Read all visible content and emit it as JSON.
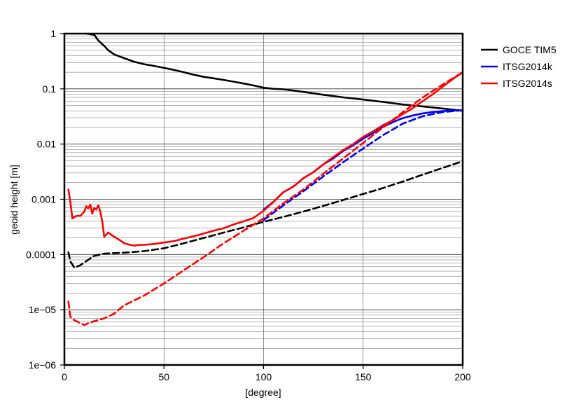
{
  "chart_data": {
    "type": "line",
    "title": "",
    "xlabel": "[degree]",
    "ylabel": "geoid height [m]",
    "xlim": [
      0,
      200
    ],
    "ylim": [
      1e-06,
      1
    ],
    "yscale": "log",
    "grid": true,
    "legend_position": "right, outside plot",
    "x_ticks": [
      {
        "value": 0,
        "label": "0"
      },
      {
        "value": 50,
        "label": "50"
      },
      {
        "value": 100,
        "label": "100"
      },
      {
        "value": 150,
        "label": "150"
      },
      {
        "value": 200,
        "label": "200"
      }
    ],
    "y_ticks": [
      {
        "value": 1e-06,
        "label": "1e−06"
      },
      {
        "value": 1e-05,
        "label": "1e−05"
      },
      {
        "value": 0.0001,
        "label": "0.0001"
      },
      {
        "value": 0.001,
        "label": "0.001"
      },
      {
        "value": 0.01,
        "label": "0.01"
      },
      {
        "value": 0.1,
        "label": "0.1"
      },
      {
        "value": 1,
        "label": "1"
      }
    ],
    "legend": [
      {
        "name": "GOCE TIM5",
        "color": "#000000"
      },
      {
        "name": "ITSG2014k",
        "color": "#0000ff"
      },
      {
        "name": "ITSG2014s",
        "color": "#ff0000"
      }
    ],
    "series": [
      {
        "name": "GOCE TIM5 signal",
        "legend_entry": "GOCE TIM5",
        "color": "#000000",
        "dash": "solid",
        "x": [
          11,
          15,
          17,
          20,
          22,
          25,
          30,
          35,
          40,
          45,
          50,
          55,
          60,
          65,
          70,
          75,
          80,
          85,
          90,
          95,
          100,
          105,
          110,
          115,
          120,
          125,
          130,
          135,
          140,
          145,
          150,
          155,
          160,
          165,
          170,
          175,
          180,
          185,
          190,
          195,
          200
        ],
        "y": [
          1.0,
          0.95,
          0.75,
          0.6,
          0.5,
          0.42,
          0.36,
          0.31,
          0.28,
          0.26,
          0.24,
          0.22,
          0.2,
          0.18,
          0.165,
          0.155,
          0.145,
          0.135,
          0.125,
          0.115,
          0.105,
          0.1,
          0.098,
          0.093,
          0.088,
          0.083,
          0.078,
          0.074,
          0.07,
          0.067,
          0.064,
          0.061,
          0.058,
          0.055,
          0.052,
          0.05,
          0.048,
          0.046,
          0.044,
          0.042,
          0.04
        ]
      },
      {
        "name": "GOCE TIM5 error",
        "legend_entry": "GOCE TIM5",
        "color": "#000000",
        "dash": "dashed",
        "x": [
          2,
          3,
          5,
          8,
          10,
          13,
          15,
          20,
          30,
          40,
          50,
          60,
          70,
          80,
          90,
          100,
          110,
          120,
          130,
          140,
          150,
          160,
          170,
          180,
          190,
          200
        ],
        "y": [
          0.00011,
          7.5e-05,
          5.8e-05,
          6.4e-05,
          7.2e-05,
          8.5e-05,
          9.5e-05,
          0.000104,
          0.000108,
          0.000115,
          0.00013,
          0.00016,
          0.0002,
          0.00025,
          0.00031,
          0.00039,
          0.00048,
          0.0006,
          0.00076,
          0.00097,
          0.00125,
          0.0016,
          0.0021,
          0.0028,
          0.0037,
          0.0049
        ]
      },
      {
        "name": "ITSG2014k signal",
        "legend_entry": "ITSG2014k",
        "color": "#0000ff",
        "dash": "solid",
        "x": [
          100,
          105,
          110,
          115,
          120,
          125,
          130,
          135,
          140,
          145,
          150,
          155,
          160,
          165,
          170,
          175,
          180,
          185,
          190,
          195,
          200
        ],
        "y": [
          0.00065,
          0.0009,
          0.00135,
          0.0017,
          0.0024,
          0.0031,
          0.0043,
          0.0055,
          0.0075,
          0.0095,
          0.0125,
          0.0158,
          0.0205,
          0.025,
          0.0295,
          0.033,
          0.036,
          0.038,
          0.0395,
          0.0405,
          0.041
        ]
      },
      {
        "name": "ITSG2014k error",
        "legend_entry": "ITSG2014k",
        "color": "#0000ff",
        "dash": "dashed",
        "x": [
          100,
          110,
          120,
          130,
          140,
          150,
          160,
          170,
          180,
          190,
          200
        ],
        "y": [
          0.00042,
          0.00078,
          0.0014,
          0.0026,
          0.0047,
          0.0083,
          0.0145,
          0.0235,
          0.032,
          0.038,
          0.041
        ]
      },
      {
        "name": "ITSG2014s signal",
        "legend_entry": "ITSG2014s",
        "color": "#ff0000",
        "dash": "solid",
        "x": [
          2,
          3,
          4,
          6,
          8,
          10,
          11,
          12,
          13,
          14,
          15,
          16,
          17,
          18,
          19,
          20,
          22,
          25,
          28,
          30,
          33,
          35,
          38,
          40,
          45,
          50,
          55,
          60,
          65,
          70,
          75,
          80,
          85,
          90,
          95,
          100,
          105,
          110,
          115,
          120,
          125,
          130,
          135,
          140,
          145,
          150,
          155,
          160,
          165,
          170,
          175,
          180,
          185,
          190,
          195,
          200
        ],
        "y": [
          0.0015,
          0.0009,
          0.00045,
          0.0005,
          0.0005,
          0.0006,
          0.00075,
          0.00068,
          0.0008,
          0.00055,
          0.0007,
          0.00065,
          0.00078,
          0.0006,
          0.0004,
          0.00021,
          0.00025,
          0.00021,
          0.00018,
          0.00016,
          0.00015,
          0.000145,
          0.00015,
          0.00015,
          0.000155,
          0.000165,
          0.000175,
          0.000195,
          0.000215,
          0.00024,
          0.00027,
          0.0003,
          0.00035,
          0.0004,
          0.00046,
          0.00062,
          0.0009,
          0.00135,
          0.0017,
          0.0024,
          0.0031,
          0.0043,
          0.0058,
          0.0078,
          0.01,
          0.0135,
          0.017,
          0.022,
          0.027,
          0.035,
          0.045,
          0.06,
          0.08,
          0.11,
          0.15,
          0.2
        ]
      },
      {
        "name": "ITSG2014s error",
        "legend_entry": "ITSG2014s",
        "color": "#ff0000",
        "dash": "dashed",
        "x": [
          2,
          3,
          4,
          6,
          8,
          10,
          12,
          15,
          20,
          25,
          30,
          40,
          50,
          60,
          70,
          80,
          90,
          100,
          110,
          120,
          130,
          140,
          150,
          160,
          170,
          180,
          190,
          200
        ],
        "y": [
          1.4e-05,
          7.5e-06,
          6.8e-06,
          6.2e-06,
          5.7e-06,
          5.3e-06,
          5.7e-06,
          6.2e-06,
          7e-06,
          8.5e-06,
          1.2e-05,
          1.8e-05,
          3e-05,
          5.2e-05,
          9e-05,
          0.00016,
          0.00027,
          0.00045,
          0.00085,
          0.0015,
          0.0029,
          0.0055,
          0.0105,
          0.02,
          0.038,
          0.07,
          0.12,
          0.2
        ]
      }
    ]
  }
}
